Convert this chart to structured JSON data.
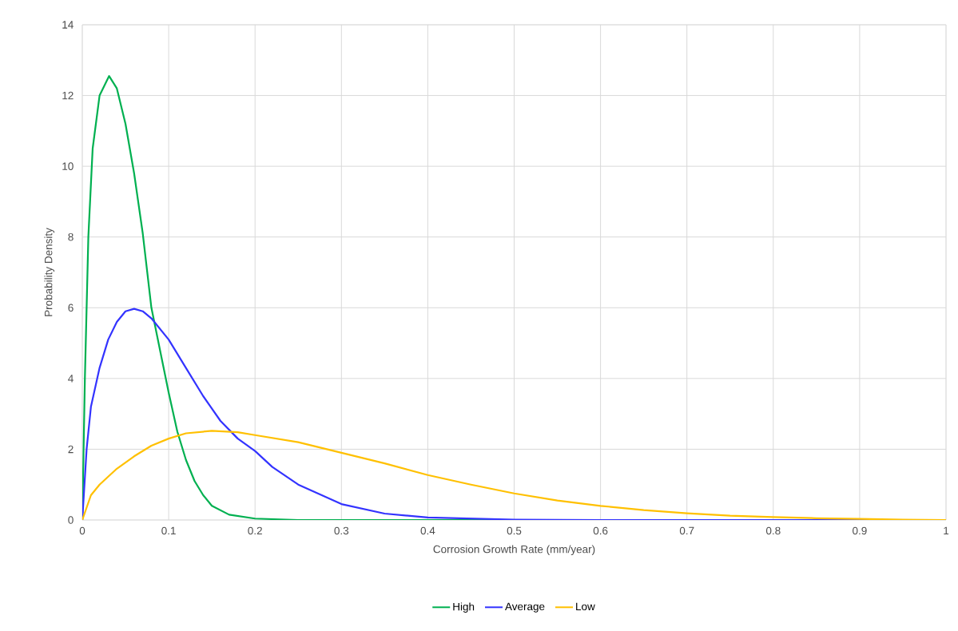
{
  "chart_data": {
    "type": "line",
    "xlabel": "Corrosion Growth Rate (mm/year)",
    "ylabel": "Probability Density",
    "xlim": [
      0,
      1
    ],
    "ylim": [
      0,
      14
    ],
    "xticks": [
      0,
      0.1,
      0.2,
      0.3,
      0.4,
      0.5,
      0.6,
      0.7,
      0.8,
      0.9,
      1
    ],
    "yticks": [
      0,
      2,
      4,
      6,
      8,
      10,
      12,
      14
    ],
    "grid": true,
    "legend": "bottom",
    "marker": "none",
    "line_style": "solid",
    "series": [
      {
        "name": "High",
        "color": "#00b050",
        "x": [
          0,
          0.003,
          0.007,
          0.012,
          0.02,
          0.031,
          0.04,
          0.05,
          0.06,
          0.07,
          0.08,
          0.09,
          0.1,
          0.11,
          0.12,
          0.13,
          0.14,
          0.15,
          0.17,
          0.2,
          0.25,
          1
        ],
        "values": [
          0,
          4,
          8,
          10.5,
          12,
          12.55,
          12.2,
          11.2,
          9.8,
          8.1,
          6.0,
          4.8,
          3.6,
          2.5,
          1.7,
          1.1,
          0.7,
          0.4,
          0.15,
          0.04,
          0,
          0
        ]
      },
      {
        "name": "Average",
        "color": "#3333ff",
        "x": [
          0,
          0.005,
          0.01,
          0.02,
          0.03,
          0.04,
          0.05,
          0.06,
          0.07,
          0.08,
          0.1,
          0.12,
          0.14,
          0.16,
          0.18,
          0.2,
          0.22,
          0.25,
          0.3,
          0.35,
          0.4,
          0.5,
          0.6,
          1
        ],
        "values": [
          0,
          2.0,
          3.2,
          4.3,
          5.1,
          5.6,
          5.9,
          5.97,
          5.9,
          5.7,
          5.1,
          4.3,
          3.5,
          2.8,
          2.3,
          1.95,
          1.5,
          1.0,
          0.45,
          0.18,
          0.07,
          0.01,
          0,
          0
        ]
      },
      {
        "name": "Low",
        "color": "#ffc000",
        "x": [
          0,
          0.01,
          0.02,
          0.04,
          0.06,
          0.08,
          0.1,
          0.12,
          0.15,
          0.18,
          0.2,
          0.25,
          0.3,
          0.35,
          0.4,
          0.45,
          0.5,
          0.55,
          0.6,
          0.65,
          0.7,
          0.75,
          0.8,
          0.85,
          0.9,
          0.95,
          1
        ],
        "values": [
          0,
          0.7,
          1.0,
          1.45,
          1.8,
          2.1,
          2.3,
          2.45,
          2.52,
          2.48,
          2.4,
          2.2,
          1.9,
          1.6,
          1.27,
          1.0,
          0.75,
          0.55,
          0.4,
          0.28,
          0.19,
          0.12,
          0.08,
          0.05,
          0.03,
          0.01,
          0
        ]
      }
    ]
  }
}
